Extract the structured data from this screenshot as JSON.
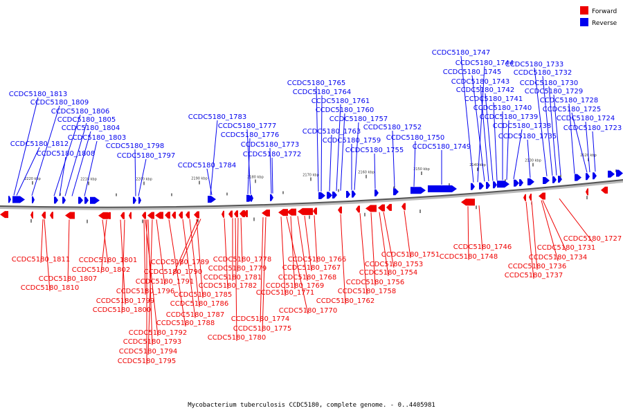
{
  "legend": {
    "forward_label": "Forward",
    "reverse_label": "Reverse",
    "forward_color": "#ee0000",
    "reverse_color": "#0000ee"
  },
  "caption": "Mycobacterium tuberculosis CCDC5180, complete genome. - 0..4405981",
  "ticks": [
    "2220 kbp",
    "2210 kbp",
    "2200 kbp",
    "2190 kbp",
    "2180 kbp",
    "2170 kbp",
    "2160 kbp",
    "2150 kbp",
    "2140 kbp",
    "2130 kbp",
    "2120 kbp"
  ],
  "reverse_genes": [
    "CCDC5180_1813",
    "CCDC5180_1809",
    "CCDC5180_1806",
    "CCDC5180_1805",
    "CCDC5180_1804",
    "CCDC5180_1803",
    "CCDC5180_1812",
    "CCDC5180_1808",
    "CCDC5180_1798",
    "CCDC5180_1797",
    "CCDC5180_1783",
    "CCDC5180_1777",
    "CCDC5180_1776",
    "CCDC5180_1784",
    "CCDC5180_1773",
    "CCDC5180_1772",
    "CCDC5180_1765",
    "CCDC5180_1764",
    "CCDC5180_1761",
    "CCDC5180_1760",
    "CCDC5180_1757",
    "CCDC5180_1763",
    "CCDC5180_1759",
    "CCDC5180_1752",
    "CCDC5180_1755",
    "CCDC5180_1750",
    "CCDC5180_1749",
    "CCDC5180_1747",
    "CCDC5180_1744",
    "CCDC5180_1745",
    "CCDC5180_1743",
    "CCDC5180_1742",
    "CCDC5180_1741",
    "CCDC5180_1740",
    "CCDC5180_1739",
    "CCDC5180_1738",
    "CCDC5180_1735",
    "CCDC5180_1733",
    "CCDC5180_1732",
    "CCDC5180_1730",
    "CCDC5180_1729",
    "CCDC5180_1728",
    "CCDC5180_1725",
    "CCDC5180_1724",
    "CCDC5180_1723"
  ],
  "forward_genes": [
    "CCDC5180_1811",
    "CCDC5180_1807",
    "CCDC5180_1810",
    "CCDC5180_1801",
    "CCDC5180_1802",
    "CCDC5180_1799",
    "CCDC5180_1800",
    "CCDC5180_1789",
    "CCDC5180_1790",
    "CCDC5180_1791",
    "CCDC5180_1796",
    "CCDC5180_1792",
    "CCDC5180_1793",
    "CCDC5180_1794",
    "CCDC5180_1795",
    "CCDC5180_1785",
    "CCDC5180_1786",
    "CCDC5180_1787",
    "CCDC5180_1788",
    "CCDC5180_1778",
    "CCDC5180_1779",
    "CCDC5180_1781",
    "CCDC5180_1782",
    "CCDC5180_1774",
    "CCDC5180_1775",
    "CCDC5180_1780",
    "CCDC5180_1766",
    "CCDC5180_1767",
    "CCDC5180_1768",
    "CCDC5180_1769",
    "CCDC5180_1771",
    "CCDC5180_1770",
    "CCDC5180_1762",
    "CCDC5180_1758",
    "CCDC5180_1756",
    "CCDC5180_1754",
    "CCDC5180_1753",
    "CCDC5180_1751",
    "CCDC5180_1746",
    "CCDC5180_1748",
    "CCDC5180_1731",
    "CCDC5180_1734",
    "CCDC5180_1736",
    "CCDC5180_1737",
    "CCDC5180_1727"
  ]
}
